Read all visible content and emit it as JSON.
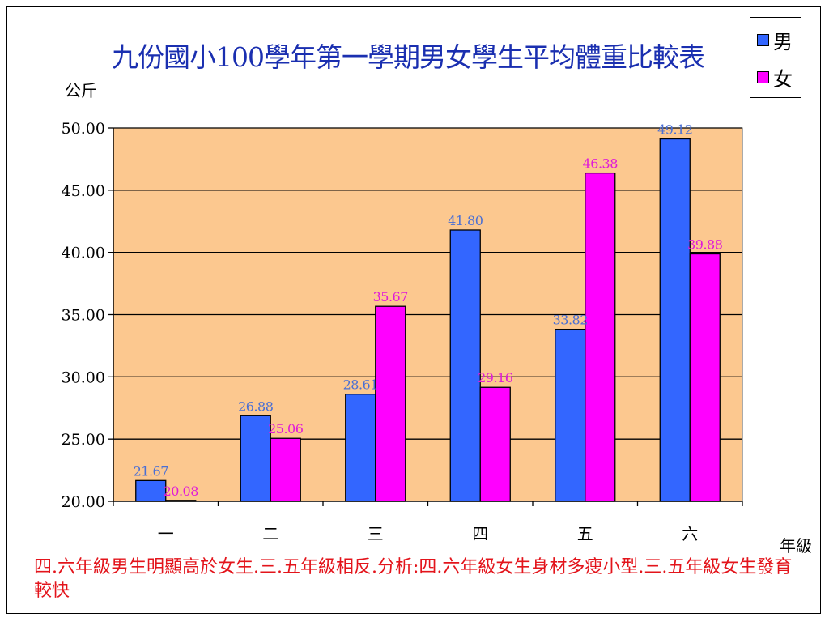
{
  "chart_data": {
    "type": "bar",
    "title": "九份國小100學年第一學期男女學生平均體重比較表",
    "ylabel": "公斤",
    "xlabel": "年級",
    "categories": [
      "一",
      "二",
      "三",
      "四",
      "五",
      "六"
    ],
    "series": [
      {
        "name": "男",
        "values": [
          21.67,
          26.88,
          28.61,
          41.8,
          33.82,
          49.12
        ],
        "color": "#3366ff"
      },
      {
        "name": "女",
        "values": [
          20.08,
          25.06,
          35.67,
          29.16,
          46.38,
          39.88
        ],
        "color": "#ff00ff"
      }
    ],
    "ylim": [
      20,
      50
    ],
    "yticks": [
      "20.00",
      "25.00",
      "30.00",
      "35.00",
      "40.00",
      "45.00",
      "50.00"
    ],
    "grid": true,
    "legend_position": "top-right",
    "plot_background": "#fcc88f",
    "label_colors": [
      "#4a6fd4",
      "#e01ad8"
    ]
  },
  "caption": "四.六年級男生明顯高於女生.三.五年級相反.分析:四.六年級女生身材多瘦小型.三.五年級女生發育較快"
}
